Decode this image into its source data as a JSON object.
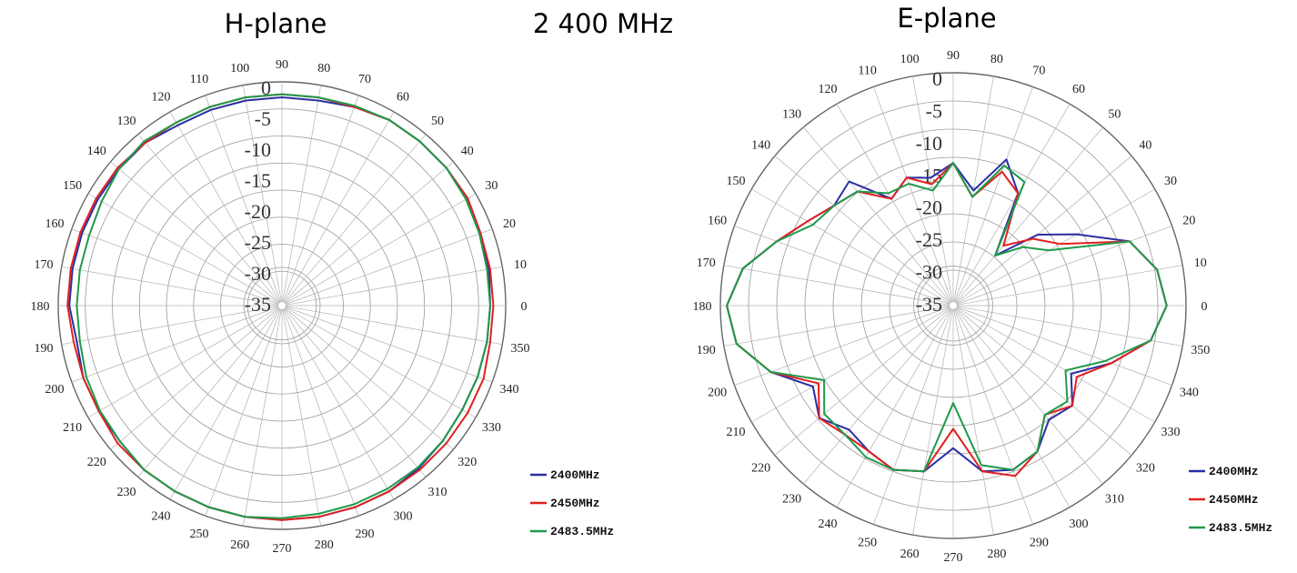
{
  "center_title": "2 400 MHz",
  "chart_data": [
    {
      "type": "polar",
      "title": "H-plane",
      "r_tick_labels": [
        "0",
        "-5",
        "-10",
        "-15",
        "-20",
        "-25",
        "-30",
        "-35"
      ],
      "rlim": [
        -35,
        0
      ],
      "angle_tick_step_deg": 10,
      "angle_tick_labels": [
        "0",
        "10",
        "20",
        "30",
        "40",
        "50",
        "60",
        "70",
        "80",
        "90",
        "100",
        "110",
        "120",
        "130",
        "140",
        "150",
        "160",
        "170",
        "180",
        "190",
        "200",
        "210",
        "220",
        "230",
        "240",
        "250",
        "260",
        "270",
        "280",
        "290",
        "300",
        "310",
        "320",
        "330",
        "340",
        "350"
      ],
      "angles_deg": [
        0,
        10,
        20,
        30,
        40,
        50,
        60,
        70,
        80,
        90,
        100,
        110,
        120,
        130,
        140,
        150,
        160,
        170,
        180,
        190,
        200,
        210,
        220,
        230,
        240,
        250,
        260,
        270,
        280,
        290,
        300,
        310,
        320,
        330,
        340,
        350
      ],
      "series": [
        {
          "name": "2400MHz",
          "color": "#2b2fa3",
          "values": [
            -2.5,
            -2.2,
            -2,
            -1.5,
            -1.5,
            -1.5,
            -1.5,
            -2,
            -2.5,
            -2.5,
            -2.5,
            -2.5,
            -2.5,
            -1.8,
            -1.8,
            -1.8,
            -1.8,
            -1.8,
            -1.8,
            -2.5,
            -2,
            -2,
            -2,
            -1.5,
            -1.5,
            -1.5,
            -1.5,
            -1.5,
            -1.5,
            -1.5,
            -1.5,
            -1.8,
            -2.2,
            -2.5,
            -2.5,
            -2.5
          ]
        },
        {
          "name": "2450MHz",
          "color": "#e02020",
          "values": [
            -2,
            -2,
            -2,
            -1.5,
            -1.5,
            -1.5,
            -1.5,
            -2,
            -2,
            -2,
            -2,
            -2,
            -2,
            -1.8,
            -1.5,
            -1.5,
            -1.5,
            -1.5,
            -1.5,
            -2,
            -2,
            -2,
            -1.5,
            -1.5,
            -1.5,
            -1.5,
            -1.5,
            -1.5,
            -1.5,
            -1.5,
            -1.5,
            -1.5,
            -1.5,
            -1.5,
            -1.5,
            -2
          ]
        },
        {
          "name": "2483.5MHz",
          "color": "#1f9a4a",
          "values": [
            -2.5,
            -2.5,
            -2.2,
            -1.8,
            -1.5,
            -1.5,
            -1.5,
            -1.8,
            -2,
            -2,
            -2,
            -2,
            -2,
            -1.5,
            -1.8,
            -2.5,
            -3,
            -3,
            -3,
            -3,
            -2.5,
            -2.2,
            -2,
            -1.5,
            -1.5,
            -1.5,
            -1.5,
            -1.8,
            -2,
            -2,
            -2,
            -2,
            -2.2,
            -2.5,
            -2.5,
            -2.5
          ]
        }
      ]
    },
    {
      "type": "polar",
      "title": "E-plane",
      "r_tick_labels": [
        "0",
        "-5",
        "-10",
        "-15",
        "-20",
        "-25",
        "-30",
        "-35"
      ],
      "rlim": [
        -35,
        0
      ],
      "angle_tick_step_deg": 10,
      "angle_tick_labels": [
        "0",
        "10",
        "20",
        "30",
        "40",
        "50",
        "60",
        "70",
        "80",
        "90",
        "100",
        "110",
        "120",
        "130",
        "140",
        "150",
        "160",
        "170",
        "180",
        "190",
        "200",
        "210",
        "220",
        "230",
        "240",
        "250",
        "260",
        "270",
        "280",
        "290",
        "300",
        "310",
        "320",
        "330",
        "340",
        "350"
      ],
      "angles_deg": [
        0,
        10,
        20,
        30,
        40,
        50,
        60,
        70,
        80,
        90,
        100,
        110,
        120,
        130,
        140,
        150,
        160,
        170,
        180,
        190,
        200,
        210,
        220,
        230,
        240,
        250,
        260,
        270,
        280,
        290,
        300,
        310,
        320,
        330,
        340,
        350
      ],
      "series": [
        {
          "name": "2400MHz",
          "color": "#2b2fa3",
          "values": [
            -3,
            -4,
            -7,
            -14,
            -19,
            -26,
            -16,
            -12,
            -18,
            -14,
            -16,
            -15,
            -17,
            -11,
            -12,
            -10,
            -7,
            -3,
            -1,
            -2,
            -6,
            -11,
            -9,
            -11,
            -10,
            -9,
            -10,
            -14,
            -10,
            -9,
            -10,
            -13,
            -12,
            -15,
            -10,
            -5
          ]
        },
        {
          "name": "2450MHz",
          "color": "#e02020",
          "values": [
            -3,
            -4,
            -7,
            -17,
            -20,
            -24,
            -16,
            -14,
            -19,
            -14,
            -17,
            -15,
            -17,
            -13,
            -12,
            -10,
            -7,
            -3,
            -1,
            -2,
            -6,
            -12,
            -9,
            -10,
            -10,
            -9,
            -10,
            -17,
            -10,
            -8,
            -10,
            -14,
            -12,
            -14,
            -10,
            -5
          ]
        },
        {
          "name": "2483.5MHz",
          "color": "#1f9a4a",
          "values": [
            -3,
            -4,
            -7,
            -19,
            -22,
            -26,
            -14,
            -13,
            -19,
            -14,
            -18,
            -16,
            -16,
            -13,
            -12,
            -11,
            -7,
            -3,
            -1,
            -2,
            -6,
            -13,
            -10,
            -10,
            -9,
            -9,
            -10,
            -21,
            -11,
            -9,
            -10,
            -14,
            -13,
            -16,
            -11,
            -5
          ]
        }
      ]
    }
  ]
}
